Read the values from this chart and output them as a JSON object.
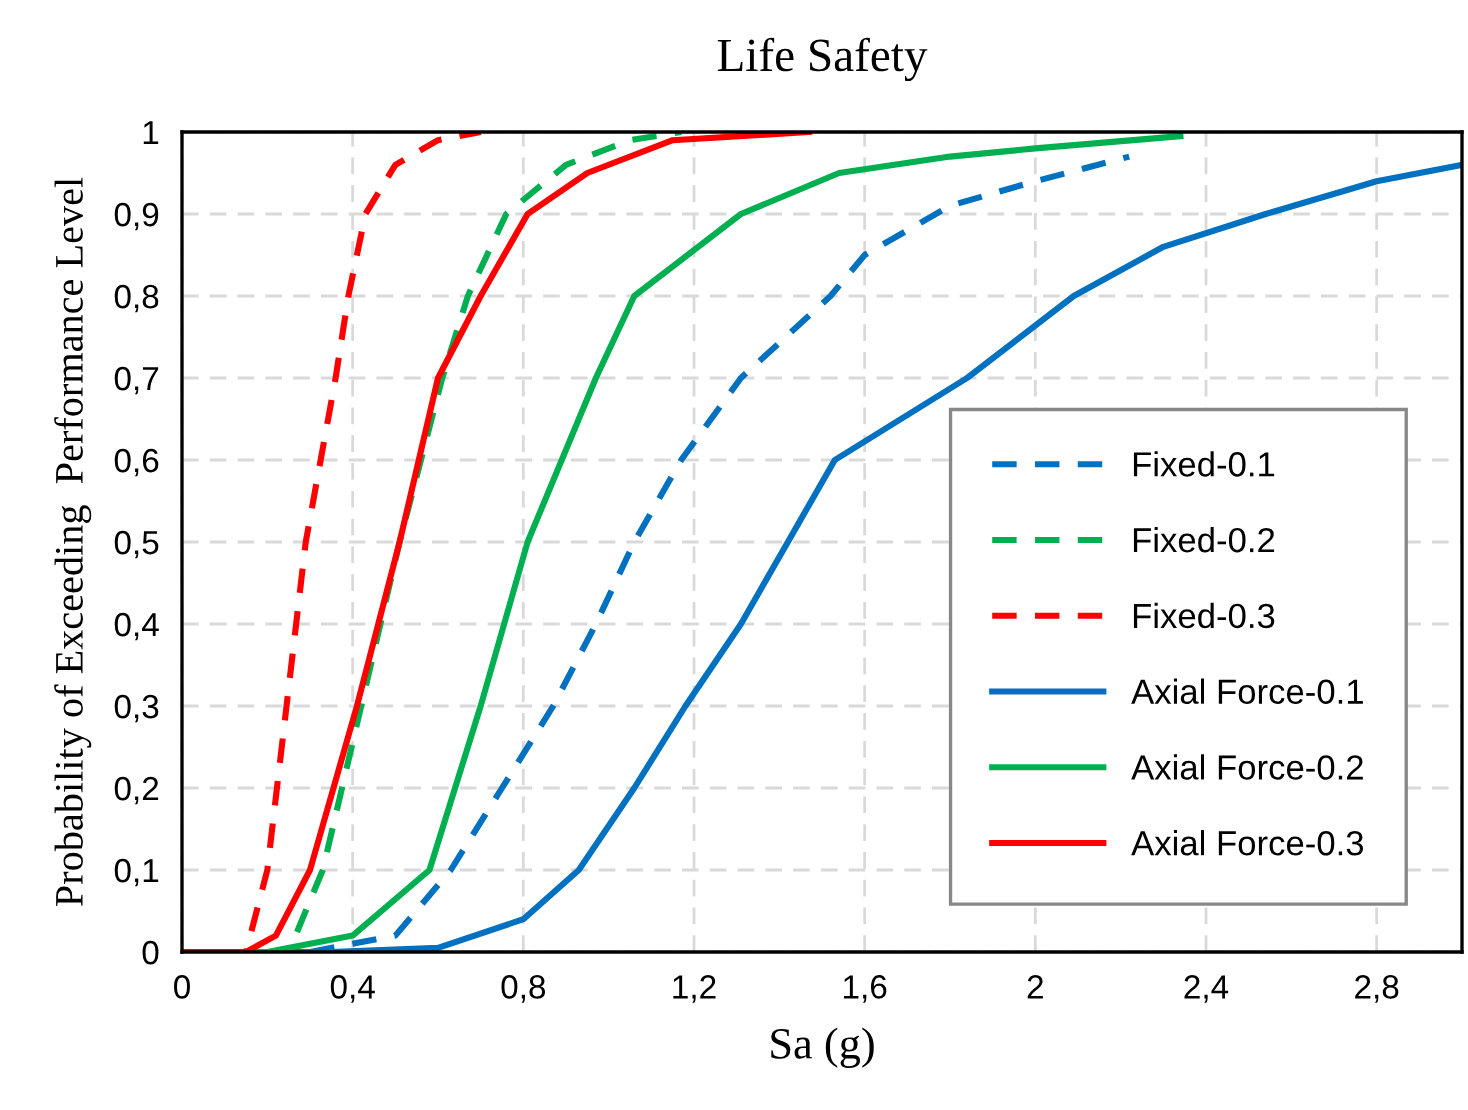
{
  "chart_data": {
    "type": "line",
    "title": "Life Safety",
    "xlabel": "Sa (g)",
    "ylabel": "Probability of Exceeding  Performance Level",
    "xlim": [
      0,
      3
    ],
    "ylim": [
      0,
      1
    ],
    "xticks": [
      0,
      {
        "value": 0.4,
        "label": "0,4"
      },
      {
        "value": 0.8,
        "label": "0,8"
      },
      {
        "value": 1.2,
        "label": "1,2"
      },
      {
        "value": 1.6,
        "label": "1,6"
      },
      2,
      {
        "value": 2.4,
        "label": "2,4"
      },
      {
        "value": 2.8,
        "label": "2,8"
      }
    ],
    "yticks": [
      0,
      {
        "value": 0.1,
        "label": "0,1"
      },
      {
        "value": 0.2,
        "label": "0,2"
      },
      {
        "value": 0.3,
        "label": "0,3"
      },
      {
        "value": 0.4,
        "label": "0,4"
      },
      {
        "value": 0.5,
        "label": "0,5"
      },
      {
        "value": 0.6,
        "label": "0,6"
      },
      {
        "value": 0.7,
        "label": "0,7"
      },
      {
        "value": 0.8,
        "label": "0,8"
      },
      {
        "value": 0.9,
        "label": "0,9"
      },
      1
    ],
    "grid": true,
    "legend": "right",
    "marker": "none",
    "series": [
      {
        "name": "Fixed-0.1",
        "color": "#0070c0",
        "line_style": "dashed",
        "x": [
          0,
          0.3,
          0.5,
          0.63,
          0.75,
          0.87,
          0.97,
          1.06,
          1.17,
          1.31,
          1.52,
          1.6,
          1.8,
          2.0,
          2.22
        ],
        "values": [
          0,
          0,
          0.02,
          0.1,
          0.2,
          0.3,
          0.4,
          0.5,
          0.6,
          0.7,
          0.8,
          0.85,
          0.91,
          0.94,
          0.97
        ]
      },
      {
        "name": "Fixed-0.2",
        "color": "#00b050",
        "line_style": "dashed",
        "x": [
          0,
          0.25,
          0.33,
          0.42,
          0.51,
          0.61,
          0.67,
          0.76,
          0.9,
          1.05,
          1.17
        ],
        "values": [
          0,
          0,
          0.1,
          0.3,
          0.5,
          0.7,
          0.8,
          0.9,
          0.96,
          0.99,
          1
        ]
      },
      {
        "name": "Fixed-0.3",
        "color": "#ff0000",
        "line_style": "dashed",
        "x": [
          0,
          0.15,
          0.2,
          0.245,
          0.29,
          0.36,
          0.39,
          0.43,
          0.5,
          0.6,
          0.7
        ],
        "values": [
          0,
          0,
          0.1,
          0.3,
          0.5,
          0.7,
          0.8,
          0.9,
          0.96,
          0.99,
          1
        ]
      },
      {
        "name": "Axial Force-0.1",
        "color": "#0070c0",
        "line_style": "solid",
        "x": [
          0,
          0.35,
          0.6,
          0.8,
          0.93,
          1.06,
          1.18,
          1.31,
          1.42,
          1.53,
          1.84,
          2.09,
          2.3,
          2.54,
          2.8,
          3.0
        ],
        "values": [
          0,
          0,
          0.005,
          0.04,
          0.1,
          0.2,
          0.3,
          0.4,
          0.5,
          0.6,
          0.7,
          0.8,
          0.86,
          0.9,
          0.94,
          0.96
        ]
      },
      {
        "name": "Axial Force-0.2",
        "color": "#00b050",
        "line_style": "solid",
        "x": [
          0,
          0.2,
          0.4,
          0.58,
          0.7,
          0.81,
          0.97,
          1.06,
          1.31,
          1.54,
          1.8,
          2.0,
          2.34
        ],
        "values": [
          0,
          0,
          0.02,
          0.1,
          0.3,
          0.5,
          0.7,
          0.8,
          0.9,
          0.95,
          0.97,
          0.98,
          0.995
        ]
      },
      {
        "name": "Axial Force-0.3",
        "color": "#ff0000",
        "line_style": "solid",
        "x": [
          0,
          0.15,
          0.22,
          0.3,
          0.41,
          0.51,
          0.6,
          0.7,
          0.81,
          0.95,
          1.15,
          1.47
        ],
        "values": [
          0,
          0,
          0.02,
          0.1,
          0.3,
          0.5,
          0.7,
          0.8,
          0.9,
          0.95,
          0.99,
          1
        ]
      }
    ]
  }
}
